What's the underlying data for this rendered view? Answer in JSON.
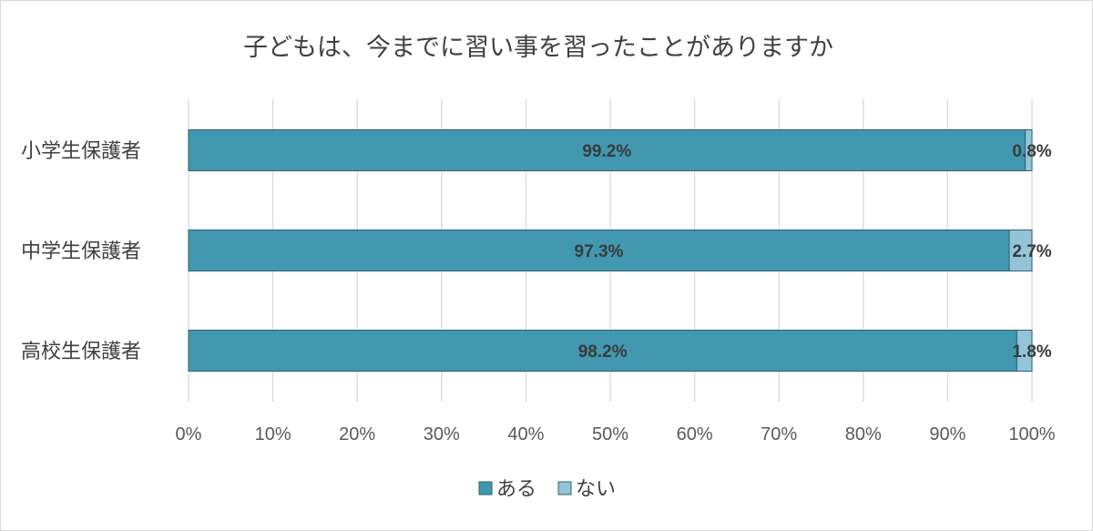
{
  "chart_data": {
    "type": "bar",
    "orientation": "horizontal",
    "stacked": "percent",
    "title": "子どもは、今までに習い事を習ったことがありますか",
    "categories": [
      "小学生保護者",
      "中学生保護者",
      "高校生保護者"
    ],
    "series": [
      {
        "name": "ある",
        "values": [
          99.2,
          97.3,
          98.2
        ],
        "labels": [
          "99.2%",
          "97.3%",
          "98.2%"
        ],
        "color": "#4198b0"
      },
      {
        "name": "ない",
        "values": [
          0.8,
          2.7,
          1.8
        ],
        "labels": [
          "0.8%",
          "2.7%",
          "1.8%"
        ],
        "color": "#93c4d8"
      }
    ],
    "xlim": [
      0,
      100
    ],
    "x_ticks": [
      "0%",
      "10%",
      "20%",
      "30%",
      "40%",
      "50%",
      "60%",
      "70%",
      "80%",
      "90%",
      "100%"
    ],
    "grid": true,
    "legend_position": "bottom"
  }
}
